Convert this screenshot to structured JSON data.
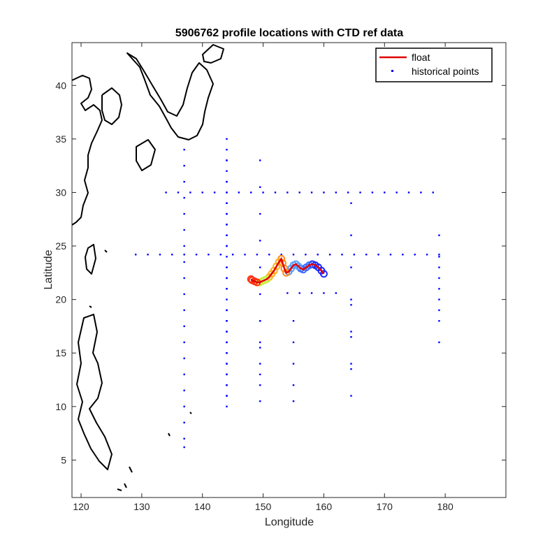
{
  "chart_data": {
    "type": "scatter",
    "title": "5906762 profile locations with CTD ref data",
    "xlabel": "Longitude",
    "ylabel": "Latitude",
    "xlim": [
      118.5,
      190
    ],
    "ylim": [
      1.5,
      44
    ],
    "xticks": [
      120,
      130,
      140,
      150,
      160,
      170,
      180
    ],
    "yticks": [
      5,
      10,
      15,
      20,
      25,
      30,
      35,
      40
    ],
    "legend": {
      "placement": "top-right",
      "entries": [
        "float",
        "historical points"
      ]
    },
    "colors": {
      "historical": "#0000ff",
      "float": "#e00000",
      "coast": "#000000"
    },
    "series": [
      {
        "name": "float",
        "x": [
          160.0,
          159.6,
          159.1,
          158.6,
          158.1,
          157.6,
          157.1,
          156.6,
          156.2,
          155.8,
          155.4,
          155.0,
          154.6,
          154.2,
          153.8,
          153.5,
          153.2,
          153.0,
          152.6,
          152.2,
          151.8,
          151.4,
          151.0,
          150.6,
          150.2,
          149.8,
          149.4,
          149.0,
          148.6,
          148.2,
          148.0
        ],
        "y": [
          22.4,
          22.7,
          23.0,
          23.2,
          23.3,
          23.2,
          23.0,
          22.8,
          22.9,
          23.1,
          23.3,
          23.2,
          22.9,
          22.6,
          22.5,
          22.9,
          23.4,
          23.8,
          23.5,
          23.1,
          22.7,
          22.4,
          22.1,
          21.9,
          21.8,
          21.7,
          21.6,
          21.6,
          21.7,
          21.8,
          21.9
        ]
      },
      {
        "name": "historical points",
        "x": [
          134.0,
          136.0,
          138.0,
          140.0,
          142.0,
          144.0,
          146.0,
          148.0,
          150.0,
          152.0,
          154.0,
          156.0,
          158.0,
          160.0,
          162.0,
          164.0,
          166.0,
          168.0,
          170.0,
          172.0,
          174.0,
          176.0,
          178.0,
          129.0,
          131.0,
          133.0,
          135.0,
          137.0,
          139.0,
          141.0,
          143.0,
          145.0,
          147.0,
          149.0,
          151.0,
          153.0,
          155.0,
          157.0,
          159.0,
          161.0,
          163.0,
          165.0,
          167.0,
          169.0,
          171.0,
          173.0,
          175.0,
          177.0,
          179.0,
          137.0,
          137.0,
          137.0,
          137.0,
          137.0,
          137.0,
          137.0,
          137.0,
          137.0,
          137.0,
          137.0,
          137.0,
          137.0,
          137.0,
          137.0,
          137.0,
          137.0,
          137.0,
          137.0,
          137.0,
          149.5,
          149.5,
          149.5,
          149.5,
          149.5,
          149.5,
          149.5,
          149.5,
          149.5,
          149.5,
          149.5,
          149.5,
          149.5,
          149.5,
          164.5,
          164.5,
          164.5,
          164.5,
          164.5,
          164.5,
          164.5,
          164.5,
          164.5,
          164.5,
          179.0,
          179.0,
          179.0,
          179.0,
          179.0,
          179.0,
          179.0,
          179.0,
          179.0,
          154.0,
          156.0,
          158.0,
          160.0,
          162.0,
          155.0,
          155.0,
          155.0,
          155.0,
          155.0,
          144.0,
          144.0,
          144.0,
          144.0,
          144.0,
          144.0,
          144.0,
          144.0,
          144.0,
          144.0,
          144.0,
          144.0,
          144.0,
          144.0,
          144.0,
          144.0,
          144.0,
          144.0,
          144.0,
          144.0,
          144.0,
          144.0,
          144.0,
          144.0,
          144.0,
          144.0,
          144.0,
          144.0,
          144.0,
          144.0,
          144.0,
          144.0,
          144.0,
          144.0,
          144.0,
          144.0,
          144.0,
          144.0,
          144.0,
          144.0,
          144.0,
          144.0,
          144.0,
          144.0,
          144.0
        ],
        "y": [
          30.0,
          30.0,
          30.0,
          30.0,
          30.0,
          30.0,
          30.0,
          30.0,
          30.0,
          30.0,
          30.0,
          30.0,
          30.0,
          30.0,
          30.0,
          30.0,
          30.0,
          30.0,
          30.0,
          30.0,
          30.0,
          30.0,
          30.0,
          24.2,
          24.2,
          24.2,
          24.2,
          24.2,
          24.2,
          24.2,
          24.2,
          24.2,
          24.2,
          24.2,
          24.2,
          24.2,
          24.2,
          24.2,
          24.2,
          24.2,
          24.2,
          24.2,
          24.2,
          24.2,
          24.2,
          24.2,
          24.2,
          24.2,
          24.2,
          34.0,
          32.5,
          31.0,
          29.5,
          28.0,
          26.5,
          25.0,
          23.5,
          22.0,
          20.5,
          19.0,
          17.5,
          16.0,
          14.5,
          13.0,
          11.5,
          10.0,
          8.5,
          7.0,
          6.2,
          33.0,
          30.5,
          28.0,
          25.5,
          23.0,
          20.5,
          18.0,
          15.5,
          13.0,
          10.5,
          12.0,
          14.0,
          16.0,
          18.0,
          29.0,
          26.0,
          23.0,
          20.0,
          17.0,
          14.0,
          11.0,
          13.5,
          16.5,
          19.5,
          26.0,
          24.0,
          22.0,
          20.0,
          18.0,
          16.0,
          23.0,
          21.0,
          19.0,
          20.6,
          20.6,
          20.6,
          20.6,
          20.6,
          18.0,
          16.0,
          14.0,
          12.0,
          10.5,
          35.0,
          34.0,
          33.0,
          32.0,
          31.0,
          30.0,
          29.0,
          28.0,
          27.0,
          26.0,
          25.0,
          24.0,
          23.0,
          22.0,
          21.0,
          20.0,
          19.0,
          18.0,
          17.0,
          16.0,
          15.0,
          14.0,
          13.0,
          12.0,
          11.0,
          33.0,
          31.0,
          29.0,
          27.0,
          25.0,
          23.0,
          21.0,
          19.0,
          17.0,
          15.0,
          13.0,
          11.0,
          28.0,
          26.0,
          22.0,
          18.0,
          16.0,
          14.0,
          12.0,
          10.0
        ]
      }
    ]
  }
}
